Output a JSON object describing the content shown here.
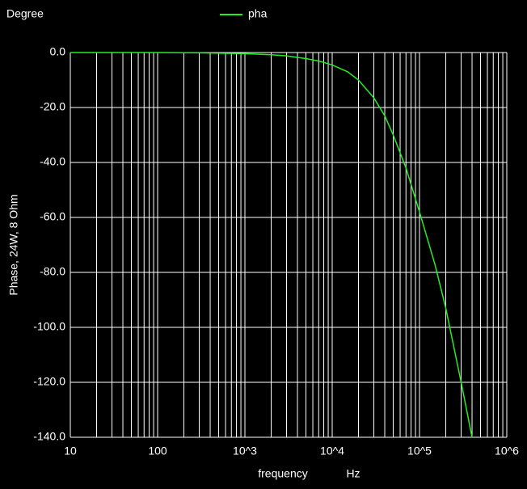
{
  "chart_data": {
    "type": "line",
    "title": "Degree",
    "ylabel": "Phase, 24W, 8 Ohm",
    "xlabel": "frequency",
    "xunit": "Hz",
    "xscale": "log",
    "grid": true,
    "legend": "top",
    "x": [
      10,
      100,
      300,
      1000,
      2000,
      3000,
      5000,
      7000,
      10000,
      15000,
      20000,
      30000,
      40000,
      50000,
      70000,
      100000,
      150000,
      200000,
      300000,
      400000
    ],
    "series": [
      {
        "name": "pha",
        "color": "#22ee22",
        "values": [
          0,
          0,
          -0.1,
          -0.4,
          -0.8,
          -1.2,
          -2.2,
          -3.1,
          -4.5,
          -7,
          -10,
          -16.5,
          -23,
          -30,
          -42,
          -58,
          -77,
          -93,
          -120,
          -140
        ]
      }
    ],
    "xlim": [
      10,
      1000000
    ],
    "xticks": [
      10,
      100,
      {
        "value": 1000,
        "label": "10^3"
      },
      {
        "value": 10000,
        "label": "10^4"
      },
      {
        "value": 100000,
        "label": "10^5"
      },
      {
        "value": 1000000,
        "label": "10^6"
      }
    ],
    "ylim": [
      -140,
      0
    ],
    "yticks": [
      {
        "value": 0,
        "label": "0.0"
      },
      {
        "value": -20,
        "label": "-20.0"
      },
      {
        "value": -40,
        "label": "-40.0"
      },
      {
        "value": -60,
        "label": "-60.0"
      },
      {
        "value": -80,
        "label": "-80.0"
      },
      {
        "value": -100,
        "label": "-100.0"
      },
      {
        "value": -120,
        "label": "-120.0"
      },
      {
        "value": -140,
        "label": "-140.0"
      }
    ]
  }
}
